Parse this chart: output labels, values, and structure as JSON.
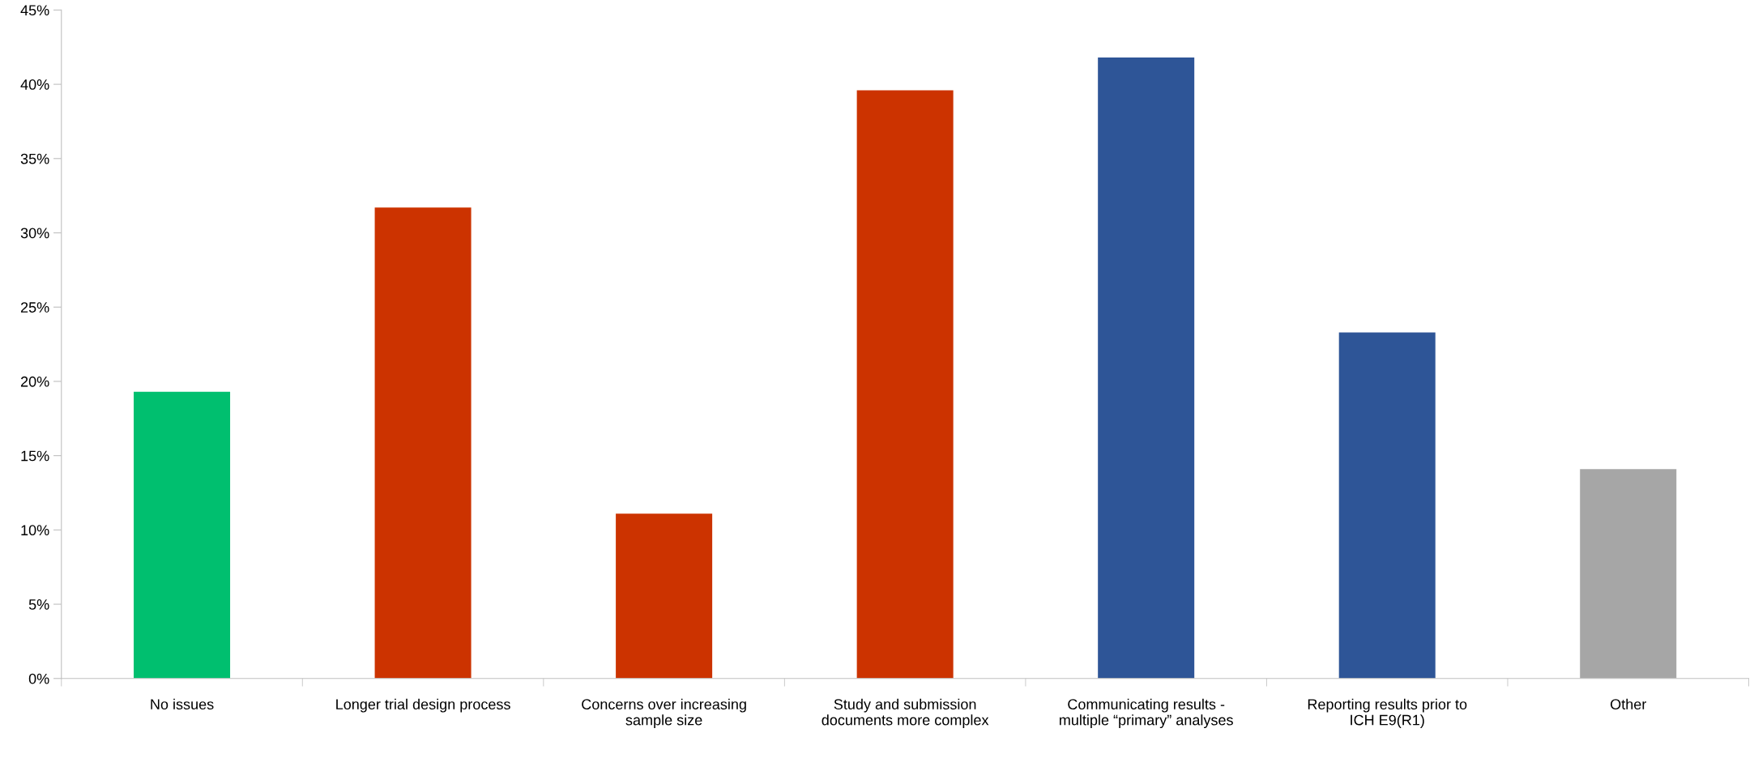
{
  "chart_data": {
    "type": "bar",
    "categories": [
      "No issues",
      "Longer trial design process",
      "Concerns over increasing sample size",
      "Study and submission documents more complex",
      "Communicating results - multiple “primary” analyses",
      "Reporting results prior to ICH E9(R1)",
      "Other"
    ],
    "values": [
      19.3,
      31.7,
      11.1,
      39.6,
      41.8,
      23.3,
      14.1
    ],
    "colors": [
      "#00bf6f",
      "#cc3300",
      "#cc3300",
      "#cc3300",
      "#2e5597",
      "#2e5597",
      "#a6a6a6"
    ],
    "ylim": [
      0,
      45
    ],
    "yticks": [
      {
        "value": 0,
        "label": "0%"
      },
      {
        "value": 5,
        "label": "5%"
      },
      {
        "value": 10,
        "label": "10%"
      },
      {
        "value": 15,
        "label": "15%"
      },
      {
        "value": 20,
        "label": "20%"
      },
      {
        "value": 25,
        "label": "25%"
      },
      {
        "value": 30,
        "label": "30%"
      },
      {
        "value": 35,
        "label": "35%"
      },
      {
        "value": 40,
        "label": "40%"
      },
      {
        "value": 45,
        "label": "45%"
      }
    ],
    "grid": false
  }
}
